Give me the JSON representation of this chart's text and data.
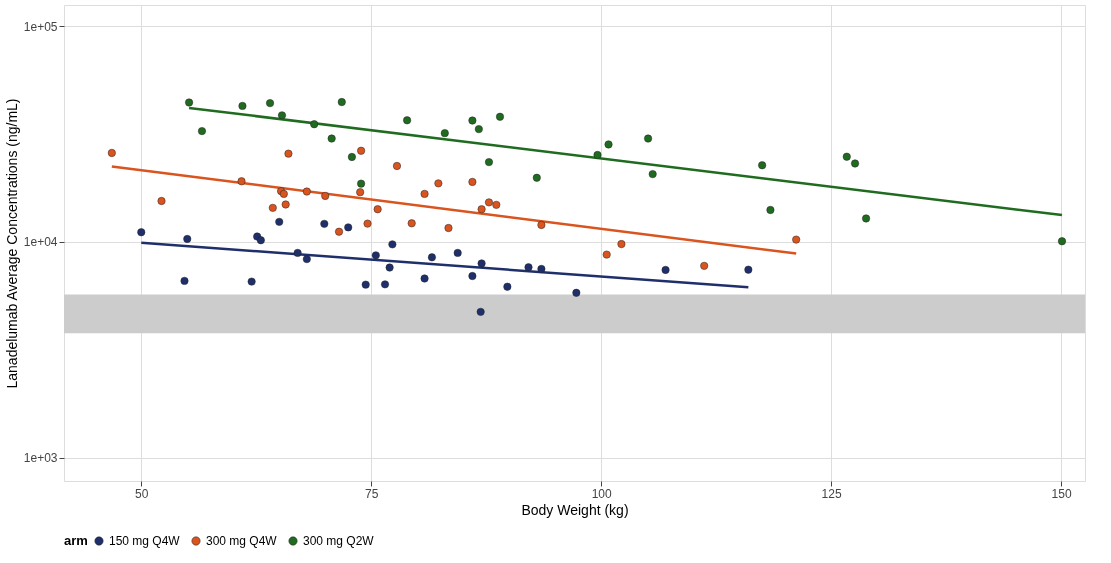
{
  "chart_data": {
    "type": "scatter",
    "xlabel": "Body Weight (kg)",
    "ylabel": "Lanadelumab Average Concentrations (ng/mL)",
    "legend_title": "arm",
    "legend": "bottom",
    "grid": true,
    "log": "y",
    "marker": "circle",
    "xlim": [
      41.6,
      152.6
    ],
    "xticks": [
      50,
      75,
      100,
      125,
      150
    ],
    "ylim": [
      778,
      125800
    ],
    "yticks": [
      {
        "value": 1000,
        "label": "1e+03"
      },
      {
        "value": 10000,
        "label": "1e+04"
      },
      {
        "value": 100000,
        "label": "1e+05"
      }
    ],
    "bands": [
      {
        "axis": "y",
        "from": 3770,
        "to": 5710,
        "color": "#cccccc"
      }
    ],
    "series": [
      {
        "name": "150 mg Q4W",
        "color": "#1f2f6b",
        "x": [
          50.0,
          55.0,
          54.7,
          62.0,
          62.6,
          63.0,
          65.0,
          67.0,
          68.0,
          69.9,
          72.5,
          74.4,
          75.5,
          76.5,
          77.0,
          77.3,
          80.8,
          81.6,
          84.4,
          86.0,
          87.0,
          86.9,
          89.8,
          92.1,
          93.5,
          97.3,
          107.0,
          116.0
        ],
        "values": [
          11100,
          10330,
          6600,
          6550,
          10600,
          10190,
          12400,
          8900,
          8330,
          12140,
          11690,
          6340,
          8670,
          6360,
          7610,
          9750,
          6770,
          8490,
          8900,
          6950,
          7950,
          4740,
          6200,
          7630,
          7500,
          5810,
          7420,
          7440
        ]
      },
      {
        "name": "300 mg Q4W",
        "color": "#d9541e",
        "x": [
          46.8,
          52.2,
          60.9,
          66.0,
          64.3,
          65.7,
          65.2,
          65.5,
          68.0,
          70.0,
          71.5,
          73.8,
          73.9,
          74.6,
          75.7,
          77.8,
          79.4,
          80.8,
          82.3,
          83.4,
          86.0,
          87.0,
          87.8,
          88.6,
          93.5,
          100.6,
          102.2,
          111.2,
          121.2
        ],
        "values": [
          25900,
          15500,
          19130,
          25700,
          14400,
          14930,
          17220,
          16720,
          17140,
          16360,
          11160,
          17030,
          26500,
          12170,
          14190,
          22530,
          12210,
          16720,
          18710,
          11610,
          19000,
          14190,
          15270,
          14870,
          12000,
          8740,
          9780,
          7750,
          10260
        ]
      },
      {
        "name": "300 mg Q2W",
        "color": "#1f6b1f",
        "x": [
          55.2,
          56.6,
          61.0,
          64.0,
          65.3,
          68.8,
          70.7,
          71.8,
          72.9,
          73.9,
          78.9,
          83.0,
          86.0,
          86.7,
          87.8,
          89.0,
          93.0,
          99.6,
          100.8,
          105.1,
          105.6,
          117.5,
          118.4,
          126.7,
          127.6,
          128.8,
          150.1
        ],
        "values": [
          44400,
          32700,
          42800,
          44100,
          38700,
          35200,
          30200,
          44600,
          24800,
          18650,
          36700,
          32000,
          36600,
          33400,
          23480,
          38100,
          19860,
          25350,
          28360,
          30200,
          20650,
          22700,
          14080,
          24870,
          23140,
          12860,
          10080
        ]
      },
      {
        "type": "line",
        "marker": "none",
        "color": "#1f2f6b",
        "x": [
          50.0,
          116.0
        ],
        "values": [
          9920,
          6160
        ]
      },
      {
        "type": "line",
        "marker": "none",
        "color": "#d9541e",
        "x": [
          46.8,
          121.2
        ],
        "values": [
          22400,
          8840
        ]
      },
      {
        "type": "line",
        "marker": "none",
        "color": "#1f6b1f",
        "x": [
          55.2,
          150.1
        ],
        "values": [
          41900,
          13330
        ]
      }
    ]
  }
}
